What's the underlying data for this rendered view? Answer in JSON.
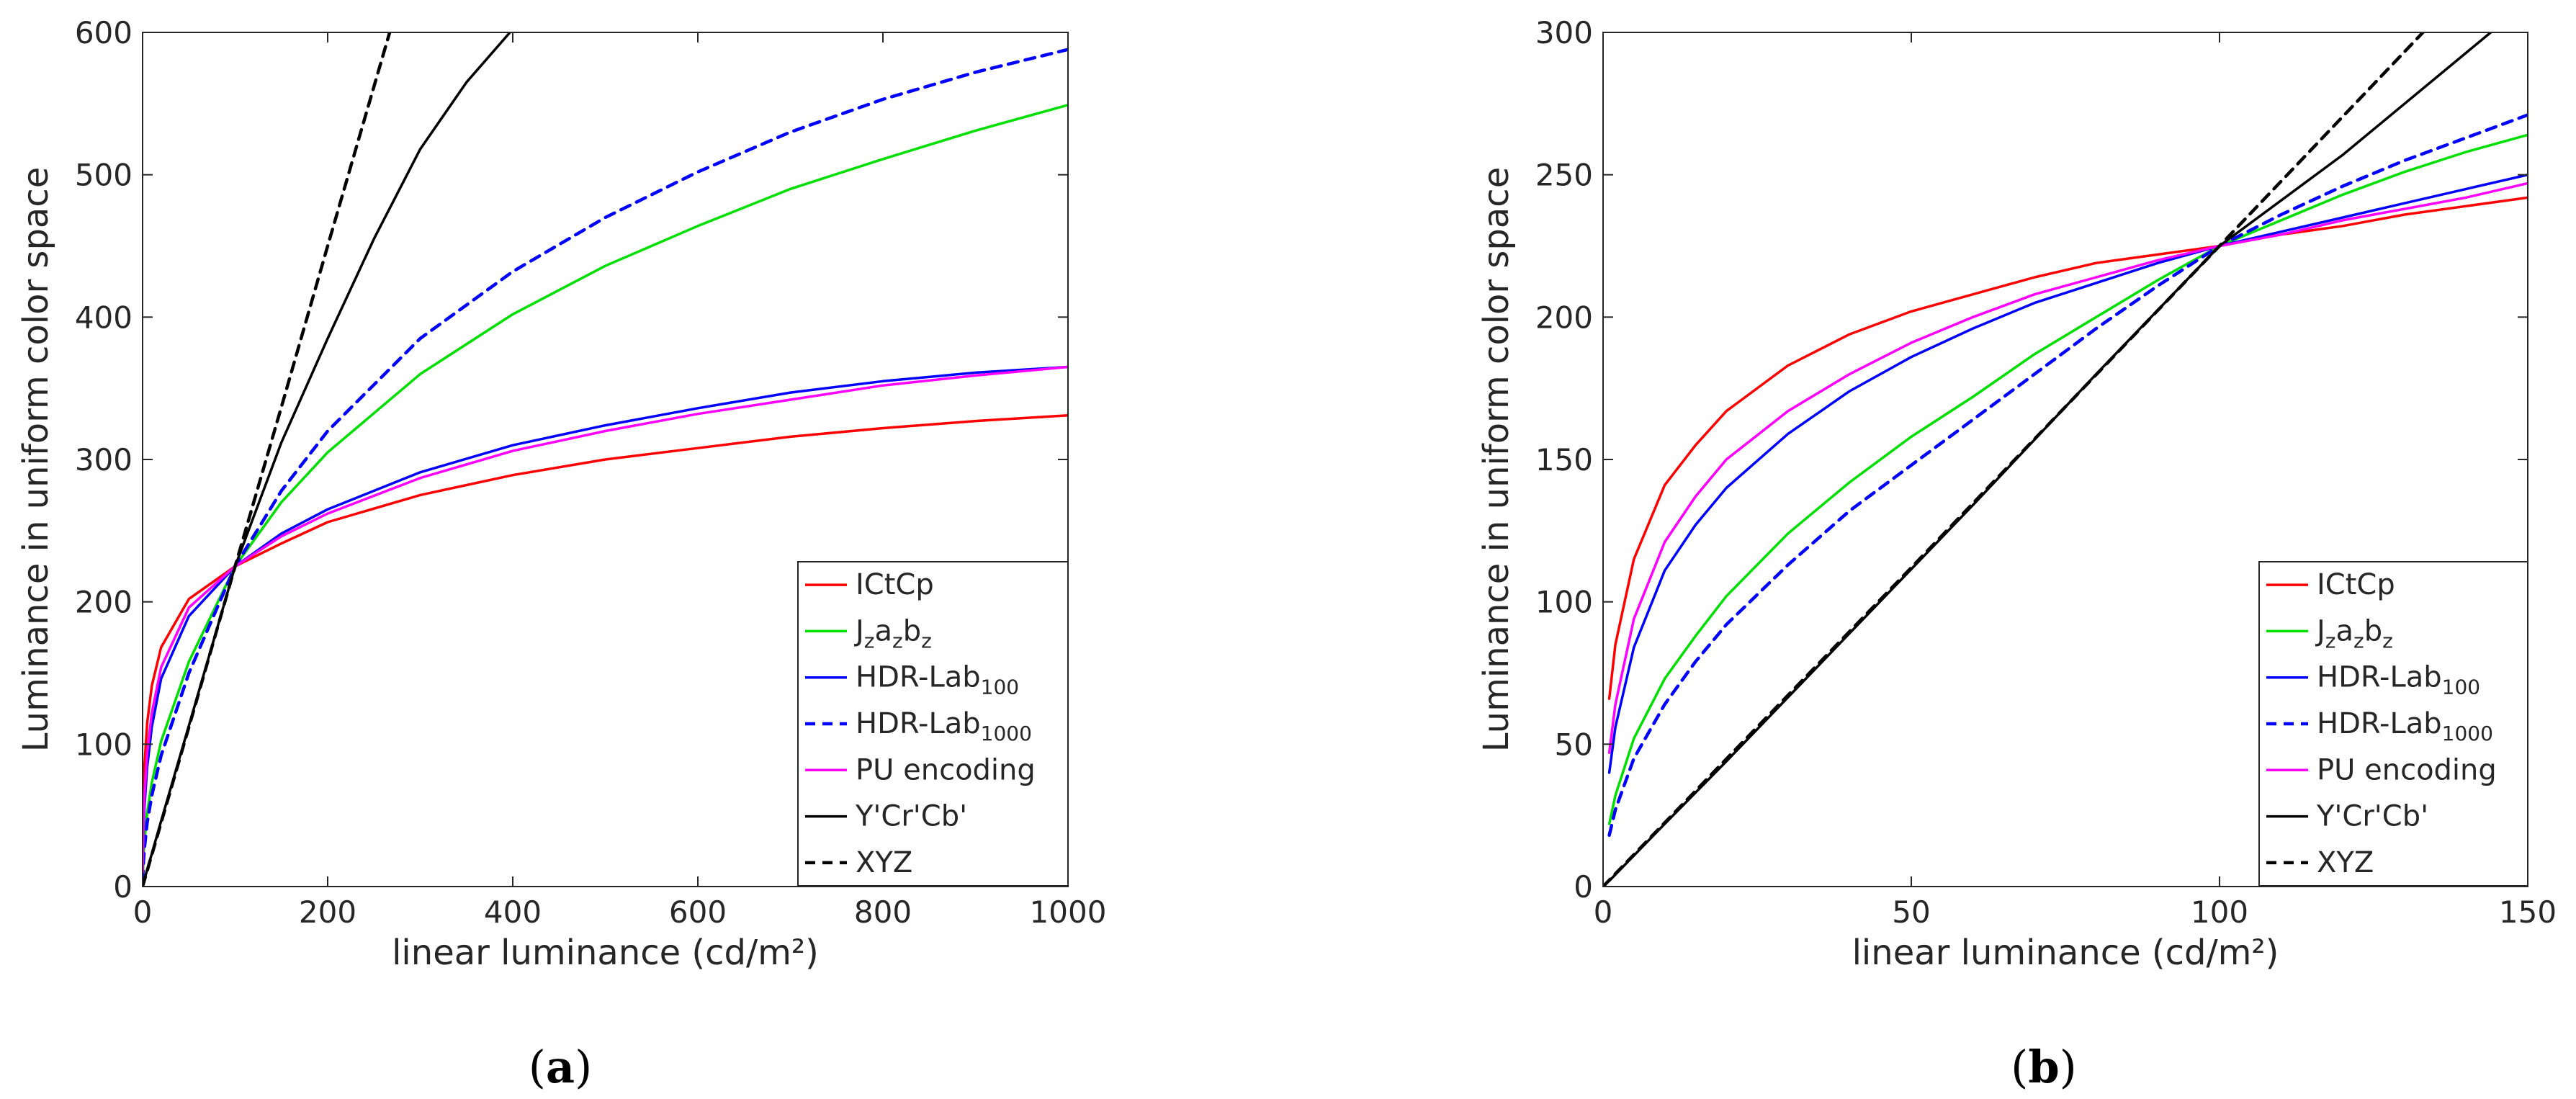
{
  "figure": {
    "panel_a_caption": {
      "open": "(",
      "letter": "a",
      "close": ")"
    },
    "panel_b_caption": {
      "open": "(",
      "letter": "b",
      "close": ")"
    }
  },
  "chart_data": [
    {
      "type": "line",
      "panel": "a",
      "xlabel": "linear luminance (cd/m²)",
      "ylabel": "Luminance in uniform color space",
      "xlim": [
        0,
        1000
      ],
      "ylim": [
        0,
        600
      ],
      "xticks": [
        0,
        200,
        400,
        600,
        800,
        1000
      ],
      "yticks": [
        0,
        100,
        200,
        300,
        400,
        500,
        600
      ],
      "grid": false,
      "legend_position": "bottom-right",
      "series": [
        {
          "name": "ICtCp",
          "legend": {
            "main": "ICtCp"
          },
          "color": "#ff0000",
          "dash": "solid",
          "x": [
            0.05,
            1,
            2,
            5,
            10,
            20,
            50,
            100,
            150,
            200,
            300,
            400,
            500,
            600,
            700,
            800,
            900,
            1000
          ],
          "y": [
            20,
            68,
            85,
            115,
            141,
            168,
            202,
            225,
            241,
            256,
            275,
            289,
            300,
            308,
            316,
            322,
            327,
            331
          ]
        },
        {
          "name": "Jzazbz",
          "legend": {
            "main": "J",
            "s1": "z",
            "m2": "a",
            "s2": "z",
            "m3": "b",
            "s3": "z"
          },
          "color": "#00e000",
          "dash": "solid",
          "x": [
            0.05,
            1,
            2,
            5,
            10,
            20,
            50,
            100,
            150,
            200,
            300,
            400,
            500,
            600,
            700,
            800,
            900,
            1000
          ],
          "y": [
            5,
            22,
            32,
            52,
            73,
            102,
            158,
            225,
            270,
            305,
            360,
            402,
            436,
            464,
            490,
            511,
            531,
            549
          ]
        },
        {
          "name": "HDR-Lab100",
          "legend": {
            "main": "HDR-Lab",
            "s1": "100"
          },
          "color": "#0000ff",
          "dash": "solid",
          "x": [
            0.05,
            1,
            2,
            5,
            10,
            20,
            50,
            100,
            150,
            200,
            300,
            400,
            500,
            600,
            700,
            800,
            900,
            1000
          ],
          "y": [
            8,
            40,
            56,
            84,
            112,
            146,
            190,
            225,
            248,
            265,
            291,
            310,
            324,
            336,
            347,
            355,
            361,
            365
          ]
        },
        {
          "name": "HDR-Lab1000",
          "legend": {
            "main": "HDR-Lab",
            "s1": "1000"
          },
          "color": "#0000ff",
          "dash": "dashed",
          "x": [
            0.05,
            1,
            2,
            5,
            10,
            20,
            50,
            100,
            150,
            200,
            300,
            400,
            500,
            600,
            700,
            800,
            900,
            1000
          ],
          "y": [
            4,
            18,
            27,
            45,
            64,
            92,
            150,
            225,
            278,
            320,
            385,
            432,
            470,
            502,
            530,
            553,
            572,
            588
          ]
        },
        {
          "name": "PU encoding",
          "legend": {
            "main": "PU encoding"
          },
          "color": "#ff00ff",
          "dash": "solid",
          "x": [
            0.05,
            1,
            2,
            5,
            10,
            20,
            50,
            100,
            150,
            200,
            300,
            400,
            500,
            600,
            700,
            800,
            900,
            1000
          ],
          "y": [
            10,
            47,
            64,
            94,
            122,
            154,
            196,
            225,
            246,
            262,
            287,
            306,
            320,
            332,
            342,
            352,
            359,
            365
          ]
        },
        {
          "name": "Y'Cr'Cb'",
          "legend": {
            "main": "Y'Cr'Cb'"
          },
          "color": "#000000",
          "dash": "solid",
          "x": [
            0.05,
            1,
            2,
            5,
            10,
            20,
            50,
            100,
            150,
            200,
            250,
            300,
            350,
            397
          ],
          "y": [
            1,
            3,
            5,
            12,
            23,
            46,
            113,
            225,
            312,
            385,
            455,
            518,
            565,
            600
          ]
        },
        {
          "name": "XYZ",
          "legend": {
            "main": "XYZ"
          },
          "color": "#000000",
          "dash": "dashed",
          "x": [
            0,
            50,
            100,
            150,
            200,
            267
          ],
          "y": [
            0,
            112,
            225,
            337,
            450,
            600
          ]
        }
      ]
    },
    {
      "type": "line",
      "panel": "b",
      "xlabel": "linear luminance (cd/m²)",
      "ylabel": "Luminance in uniform color space",
      "xlim": [
        0,
        150
      ],
      "ylim": [
        0,
        300
      ],
      "xticks": [
        0,
        50,
        100,
        150
      ],
      "yticks": [
        0,
        50,
        100,
        150,
        200,
        250,
        300
      ],
      "grid": false,
      "legend_position": "bottom-right",
      "series": [
        {
          "name": "ICtCp",
          "legend": {
            "main": "ICtCp"
          },
          "color": "#ff0000",
          "dash": "solid",
          "x": [
            1,
            2,
            5,
            10,
            15,
            20,
            30,
            40,
            50,
            60,
            70,
            80,
            90,
            100,
            110,
            120,
            130,
            140,
            150
          ],
          "y": [
            66,
            85,
            115,
            141,
            155,
            167,
            183,
            194,
            202,
            208,
            214,
            219,
            222,
            225,
            229,
            232,
            236,
            239,
            242
          ]
        },
        {
          "name": "Jzazbz",
          "legend": {
            "main": "J",
            "s1": "z",
            "m2": "a",
            "s2": "z",
            "m3": "b",
            "s3": "z"
          },
          "color": "#00e000",
          "dash": "solid",
          "x": [
            1,
            2,
            5,
            10,
            15,
            20,
            30,
            40,
            50,
            60,
            70,
            80,
            90,
            100,
            110,
            120,
            130,
            140,
            150
          ],
          "y": [
            22,
            32,
            52,
            73,
            88,
            102,
            124,
            142,
            158,
            172,
            187,
            200,
            213,
            225,
            234,
            243,
            251,
            258,
            264
          ]
        },
        {
          "name": "HDR-Lab100",
          "legend": {
            "main": "HDR-Lab",
            "s1": "100"
          },
          "color": "#0000ff",
          "dash": "solid",
          "x": [
            1,
            2,
            5,
            10,
            15,
            20,
            30,
            40,
            50,
            60,
            70,
            80,
            90,
            100,
            110,
            120,
            130,
            140,
            150
          ],
          "y": [
            40,
            56,
            84,
            111,
            127,
            140,
            159,
            174,
            186,
            196,
            205,
            212,
            219,
            225,
            230,
            235,
            240,
            245,
            250
          ]
        },
        {
          "name": "HDR-Lab1000",
          "legend": {
            "main": "HDR-Lab",
            "s1": "1000"
          },
          "color": "#0000ff",
          "dash": "dashed",
          "x": [
            1,
            2,
            5,
            10,
            15,
            20,
            30,
            40,
            50,
            60,
            70,
            80,
            90,
            100,
            110,
            120,
            130,
            140,
            150
          ],
          "y": [
            18,
            27,
            45,
            64,
            79,
            92,
            113,
            132,
            148,
            164,
            180,
            196,
            211,
            225,
            236,
            246,
            255,
            263,
            271
          ]
        },
        {
          "name": "PU encoding",
          "legend": {
            "main": "PU encoding"
          },
          "color": "#ff00ff",
          "dash": "solid",
          "x": [
            1,
            2,
            5,
            10,
            15,
            20,
            30,
            40,
            50,
            60,
            70,
            80,
            90,
            100,
            110,
            120,
            130,
            140,
            150
          ],
          "y": [
            47,
            64,
            94,
            121,
            137,
            150,
            167,
            180,
            191,
            200,
            208,
            214,
            220,
            225,
            229,
            234,
            238,
            242,
            247
          ]
        },
        {
          "name": "Y'Cr'Cb'",
          "legend": {
            "main": "Y'Cr'Cb'"
          },
          "color": "#000000",
          "dash": "solid",
          "x": [
            1,
            10,
            20,
            40,
            60,
            80,
            100,
            120,
            144
          ],
          "y": [
            2,
            22,
            44,
            89,
            134,
            180,
            225,
            257,
            300
          ]
        },
        {
          "name": "XYZ",
          "legend": {
            "main": "XYZ"
          },
          "color": "#000000",
          "dash": "dashed",
          "x": [
            0,
            50,
            100,
            133
          ],
          "y": [
            0,
            112,
            225,
            300
          ]
        }
      ]
    }
  ]
}
